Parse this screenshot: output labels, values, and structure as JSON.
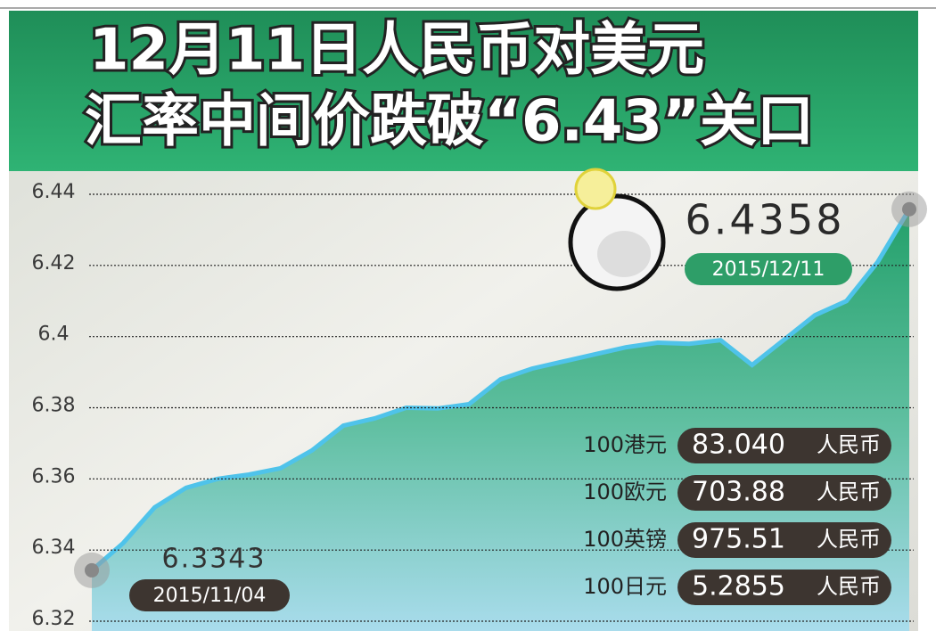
{
  "chart_data": {
    "type": "area",
    "title_lines": [
      "12月11日人民币对美元",
      "汇率中间价跌破“6.43”关口"
    ],
    "categories": [
      "2015/11/04",
      null,
      null,
      null,
      null,
      null,
      null,
      null,
      null,
      null,
      null,
      null,
      null,
      null,
      null,
      null,
      null,
      null,
      null,
      null,
      null,
      null,
      null,
      null,
      null,
      null,
      "2015/12/11"
    ],
    "values": [
      6.3343,
      6.342,
      6.352,
      6.3575,
      6.36,
      6.3612,
      6.363,
      6.368,
      6.375,
      6.377,
      6.38,
      6.3798,
      6.381,
      6.388,
      6.391,
      6.393,
      6.395,
      6.397,
      6.3983,
      6.398,
      6.399,
      6.392,
      6.399,
      6.406,
      6.41,
      6.421,
      6.4358
    ],
    "color": "#4fc3ea",
    "ylim": [
      6.32,
      6.44
    ],
    "yticks": [
      6.32,
      6.34,
      6.36,
      6.38,
      6.4,
      6.42,
      6.44
    ],
    "grid": true,
    "exchange_rates": [
      {
        "unit": "100港元",
        "value": "83.040",
        "currency": "人民币"
      },
      {
        "unit": "100欧元",
        "value": "703.88",
        "currency": "人民币"
      },
      {
        "unit": "100英镑",
        "value": "975.51",
        "currency": "人民币"
      },
      {
        "unit": "100日元",
        "value": "5.2855",
        "currency": "人民币"
      }
    ]
  }
}
